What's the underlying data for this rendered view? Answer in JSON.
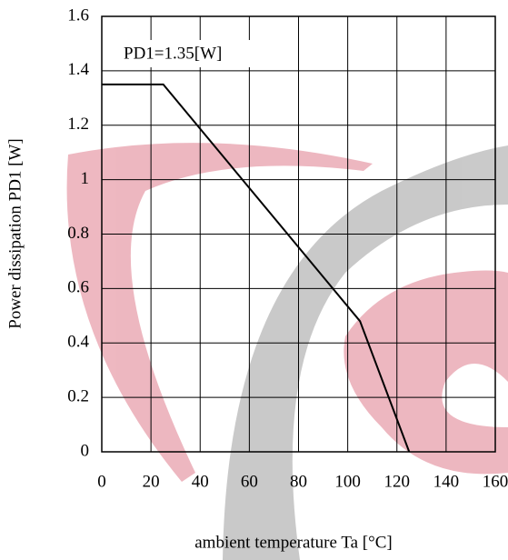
{
  "chart_data": {
    "type": "line",
    "y_label": "Power dissipation PD1 [W]",
    "x_label": "ambient temperature Ta [°C]",
    "annotation": "PD1=1.35[W]",
    "x": [
      0,
      25,
      105,
      125
    ],
    "series": [
      {
        "color": "#000000",
        "values": [
          1.35,
          1.35,
          0.48,
          0
        ]
      }
    ],
    "xlim": [
      0,
      160
    ],
    "xticks": [
      0,
      20,
      40,
      60,
      80,
      100,
      120,
      140,
      160
    ],
    "ylim": [
      0,
      1.6
    ],
    "yticks": [
      0,
      0.2,
      0.4,
      0.6,
      0.8,
      1,
      1.2,
      1.4,
      1.6
    ],
    "grid": true
  }
}
